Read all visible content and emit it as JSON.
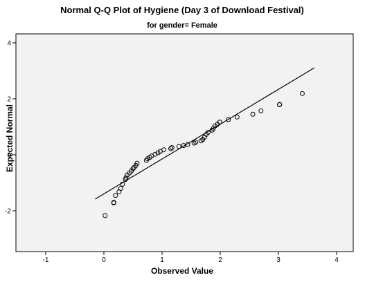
{
  "chart_data": {
    "type": "scatter",
    "title": "Normal Q-Q Plot of Hygiene (Day 3 of Download Festival)",
    "subtitle": "for gender= Female",
    "xlabel": "Observed Value",
    "ylabel": "Expected Normal",
    "xlim": [
      -1,
      4
    ],
    "ylim": [
      -3,
      4
    ],
    "xticks": [
      -1,
      0,
      1,
      2,
      3,
      4
    ],
    "yticks": [
      -2,
      0,
      2,
      4
    ],
    "grid": false,
    "points": [
      [
        0.02,
        -2.17
      ],
      [
        0.17,
        -1.72
      ],
      [
        0.17,
        -1.7
      ],
      [
        0.2,
        -1.45
      ],
      [
        0.26,
        -1.32
      ],
      [
        0.29,
        -1.2
      ],
      [
        0.32,
        -1.05
      ],
      [
        0.37,
        -0.88
      ],
      [
        0.38,
        -0.82
      ],
      [
        0.4,
        -0.72
      ],
      [
        0.44,
        -0.65
      ],
      [
        0.47,
        -0.58
      ],
      [
        0.5,
        -0.5
      ],
      [
        0.52,
        -0.45
      ],
      [
        0.55,
        -0.38
      ],
      [
        0.57,
        -0.3
      ],
      [
        0.73,
        -0.2
      ],
      [
        0.75,
        -0.14
      ],
      [
        0.79,
        -0.09
      ],
      [
        0.82,
        -0.04
      ],
      [
        0.88,
        0.02
      ],
      [
        0.93,
        0.07
      ],
      [
        0.97,
        0.12
      ],
      [
        1.03,
        0.18
      ],
      [
        1.15,
        0.22
      ],
      [
        1.17,
        0.26
      ],
      [
        1.29,
        0.3
      ],
      [
        1.37,
        0.33
      ],
      [
        1.44,
        0.37
      ],
      [
        1.55,
        0.42
      ],
      [
        1.58,
        0.45
      ],
      [
        1.67,
        0.5
      ],
      [
        1.7,
        0.55
      ],
      [
        1.73,
        0.63
      ],
      [
        1.76,
        0.73
      ],
      [
        1.79,
        0.8
      ],
      [
        1.86,
        0.88
      ],
      [
        1.88,
        0.94
      ],
      [
        1.91,
        1.03
      ],
      [
        1.95,
        1.09
      ],
      [
        1.99,
        1.17
      ],
      [
        2.14,
        1.26
      ],
      [
        2.29,
        1.35
      ],
      [
        2.56,
        1.45
      ],
      [
        2.7,
        1.57
      ],
      [
        3.02,
        1.79
      ],
      [
        3.02,
        1.8
      ],
      [
        3.41,
        2.19
      ]
    ],
    "reference_line": {
      "x": [
        -0.15,
        3.62
      ],
      "y": [
        -1.58,
        3.11
      ]
    },
    "colors": {
      "background": "#ffffff",
      "plot_area": "#f2f2f2",
      "marker": "#000000",
      "line": "#000000"
    }
  }
}
